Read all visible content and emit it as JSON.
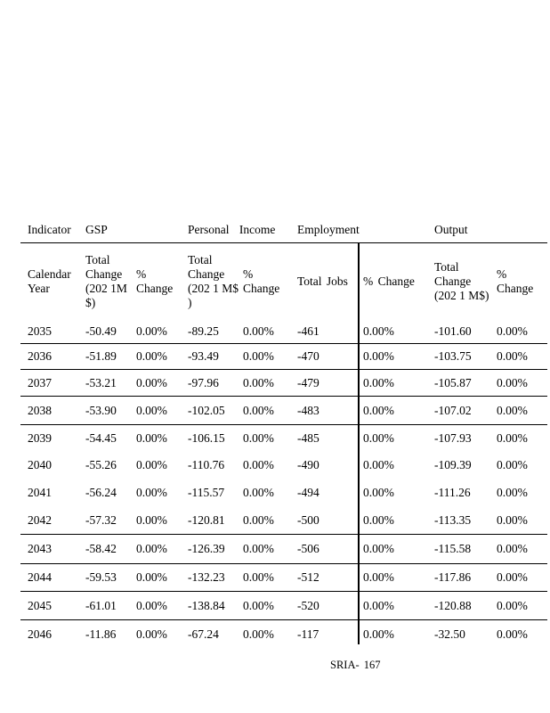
{
  "table": {
    "header_row1": {
      "indicator": "Indicator",
      "gsp": "GSP",
      "personal_income": "Personal Income",
      "employment": "Employment",
      "output": "Output"
    },
    "header_row2": {
      "calendar_year": "Calendar\nYear",
      "gsp_total": "Total\nChange\n(202 1M\n$)",
      "gsp_pct": "%\nChange",
      "pi_total": "Total\nChange\n(202 1 M$\n)",
      "pi_pct": "%\nChange",
      "jobs": "Total Jobs",
      "emp_pct": "% Change",
      "out_total": "Total\nChange\n(202 1 M$)",
      "out_pct": "% Change"
    },
    "rows": [
      {
        "year": "2035",
        "gsp_total": "-50.49",
        "gsp_pct": "0.00%",
        "pi_total": "-89.25",
        "pi_pct": "0.00%",
        "jobs": "-461",
        "emp_pct": "0.00%",
        "out_total": "-101.60",
        "out_pct": "0.00%"
      },
      {
        "year": "2036",
        "gsp_total": "-51.89",
        "gsp_pct": "0.00%",
        "pi_total": "-93.49",
        "pi_pct": "0.00%",
        "jobs": "-470",
        "emp_pct": "0.00%",
        "out_total": "-103.75",
        "out_pct": "0.00%"
      },
      {
        "year": "2037",
        "gsp_total": "-53.21",
        "gsp_pct": "0.00%",
        "pi_total": "-97.96",
        "pi_pct": "0.00%",
        "jobs": "-479",
        "emp_pct": "0.00%",
        "out_total": "-105.87",
        "out_pct": "0.00%"
      },
      {
        "year": "2038",
        "gsp_total": "-53.90",
        "gsp_pct": "0.00%",
        "pi_total": "-102.05",
        "pi_pct": "0.00%",
        "jobs": "-483",
        "emp_pct": "0.00%",
        "out_total": "-107.02",
        "out_pct": "0.00%"
      },
      {
        "year": "2039",
        "gsp_total": "-54.45",
        "gsp_pct": "0.00%",
        "pi_total": "-106.15",
        "pi_pct": "0.00%",
        "jobs": "-485",
        "emp_pct": "0.00%",
        "out_total": "-107.93",
        "out_pct": "0.00%"
      },
      {
        "year": "2040",
        "gsp_total": "-55.26",
        "gsp_pct": "0.00%",
        "pi_total": "-110.76",
        "pi_pct": "0.00%",
        "jobs": "-490",
        "emp_pct": "0.00%",
        "out_total": "-109.39",
        "out_pct": "0.00%"
      },
      {
        "year": "2041",
        "gsp_total": "-56.24",
        "gsp_pct": "0.00%",
        "pi_total": "-115.57",
        "pi_pct": "0.00%",
        "jobs": "-494",
        "emp_pct": "0.00%",
        "out_total": "-111.26",
        "out_pct": "0.00%"
      },
      {
        "year": "2042",
        "gsp_total": "-57.32",
        "gsp_pct": "0.00%",
        "pi_total": "-120.81",
        "pi_pct": "0.00%",
        "jobs": "-500",
        "emp_pct": "0.00%",
        "out_total": "-113.35",
        "out_pct": "0.00%"
      },
      {
        "year": "2043",
        "gsp_total": "-58.42",
        "gsp_pct": "0.00%",
        "pi_total": "-126.39",
        "pi_pct": "0.00%",
        "jobs": "-506",
        "emp_pct": "0.00%",
        "out_total": "-115.58",
        "out_pct": "0.00%"
      },
      {
        "year": "2044",
        "gsp_total": "-59.53",
        "gsp_pct": "0.00%",
        "pi_total": "-132.23",
        "pi_pct": "0.00%",
        "jobs": "-512",
        "emp_pct": "0.00%",
        "out_total": "-117.86",
        "out_pct": "0.00%"
      },
      {
        "year": "2045",
        "gsp_total": "-61.01",
        "gsp_pct": "0.00%",
        "pi_total": "-138.84",
        "pi_pct": "0.00%",
        "jobs": "-520",
        "emp_pct": "0.00%",
        "out_total": "-120.88",
        "out_pct": "0.00%"
      },
      {
        "year": "2046",
        "gsp_total": "-11.86",
        "gsp_pct": "0.00%",
        "pi_total": "-67.24",
        "pi_pct": "0.00%",
        "jobs": "-117",
        "emp_pct": "0.00%",
        "out_total": "-32.50",
        "out_pct": "0.00%"
      }
    ]
  },
  "footer": {
    "page_label": "SRIA- 167"
  }
}
